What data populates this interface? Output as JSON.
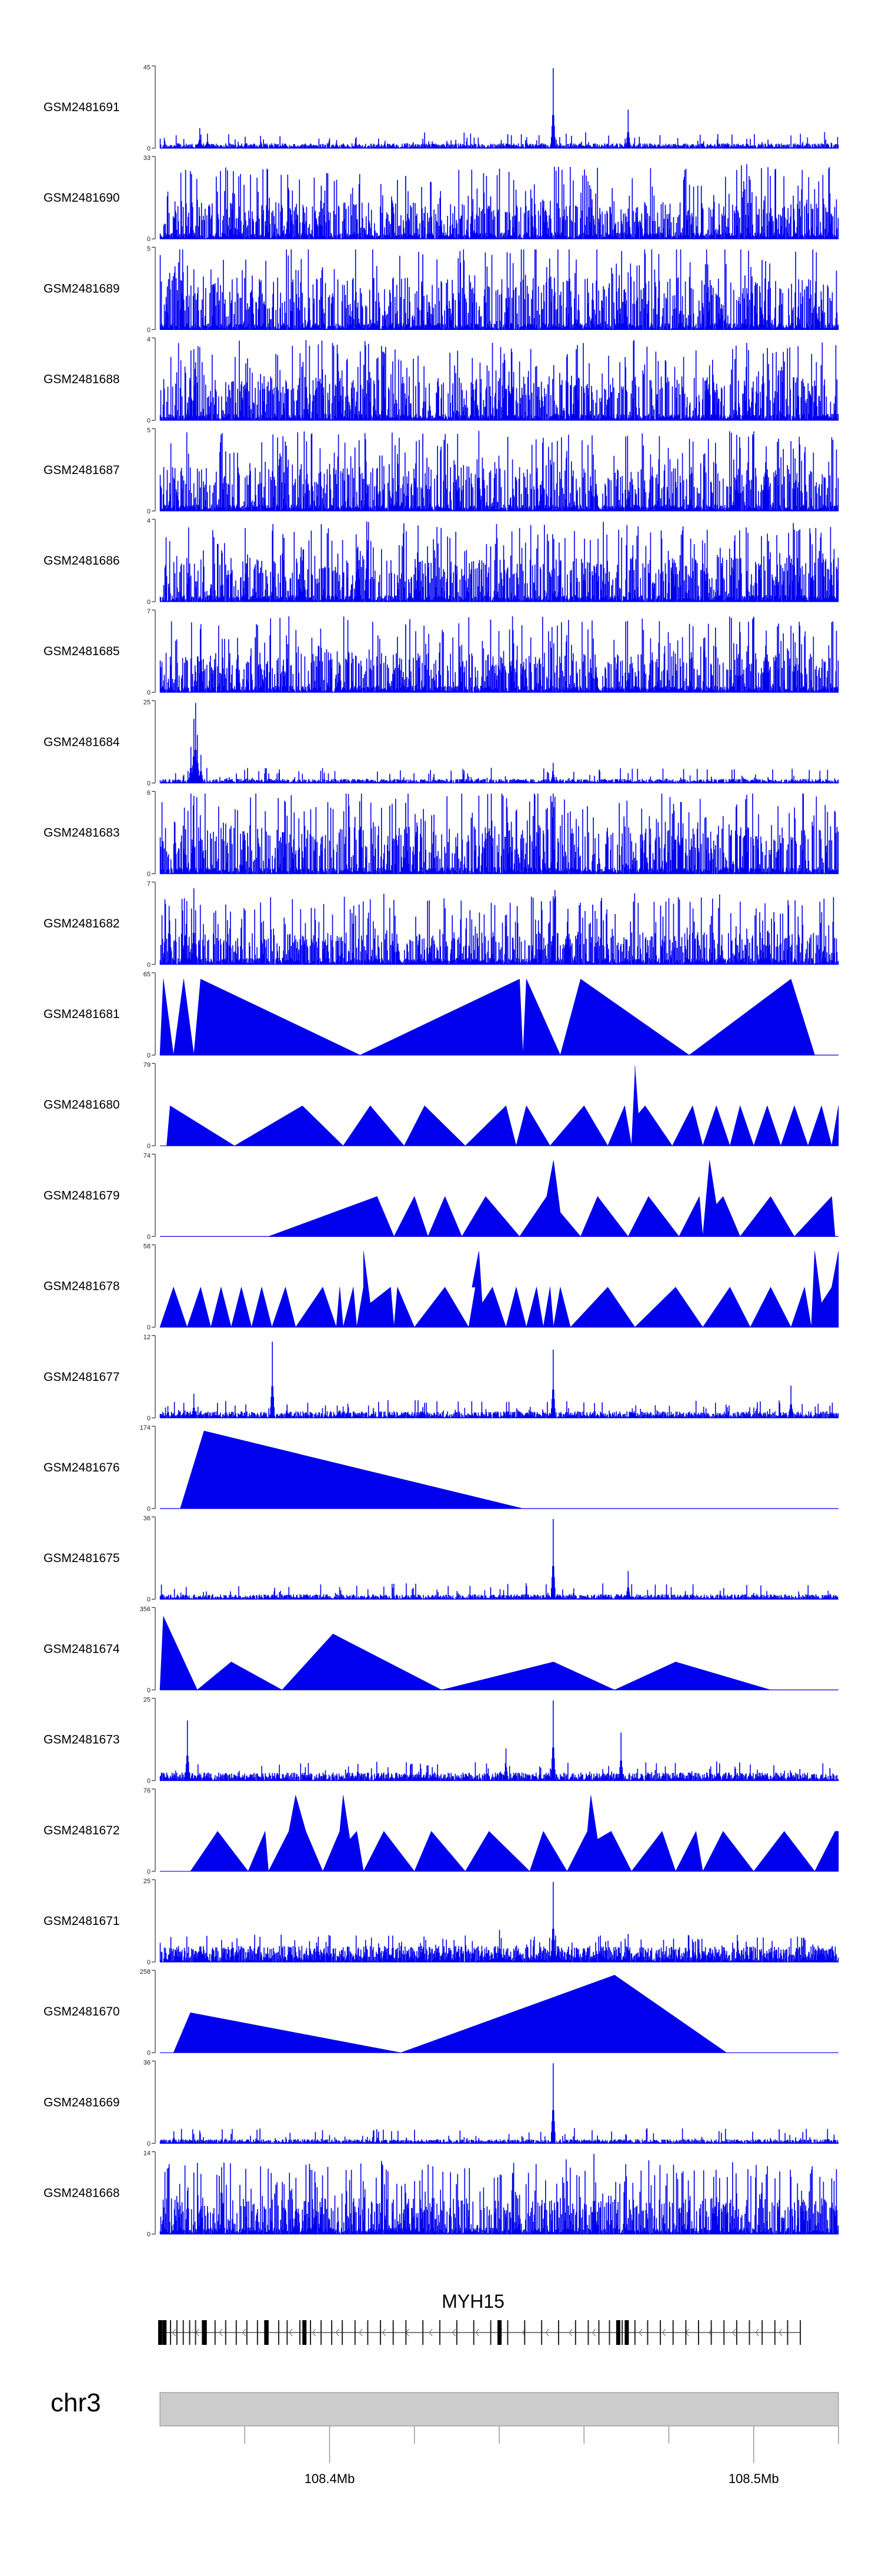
{
  "colors": {
    "signal": "#0000ee",
    "axis": "#000000",
    "ideogram": "#cccccc",
    "ideogram_border": "#888888"
  },
  "chart_data": {
    "type": "area",
    "title": "",
    "chromosome": "chr3",
    "x_range_bp": [
      108360000,
      108520000
    ],
    "x_ticks": [
      {
        "pos": 108380000,
        "label": ""
      },
      {
        "pos": 108400000,
        "label": "108.4Mb"
      },
      {
        "pos": 108420000,
        "label": ""
      },
      {
        "pos": 108440000,
        "label": ""
      },
      {
        "pos": 108460000,
        "label": ""
      },
      {
        "pos": 108480000,
        "label": ""
      },
      {
        "pos": 108500000,
        "label": "108.5Mb"
      },
      {
        "pos": 108520000,
        "label": ""
      }
    ],
    "gene": {
      "name": "MYH15",
      "start": 108360000,
      "end": 108511000,
      "strand": "-",
      "exons": [
        108360000,
        108361200,
        108362500,
        108364000,
        108365500,
        108367000,
        108368400,
        108370000,
        108373000,
        108375500,
        108378000,
        108380500,
        108383000,
        108385500,
        108388000,
        108390000,
        108393000,
        108395500,
        108398000,
        108400500,
        108403000,
        108406000,
        108409000,
        108412000,
        108415000,
        108418000,
        108422000,
        108426000,
        108430000,
        108434000,
        108438000,
        108442000,
        108446000,
        108450000,
        108454000,
        108458000,
        108461000,
        108463500,
        108466000,
        108469000,
        108472000,
        108475000,
        108478000,
        108481000,
        108484000,
        108487000,
        108490000,
        108493000,
        108496000,
        108499000,
        108502000,
        108505000,
        108508000,
        108511000
      ],
      "thick_exons": [
        108360000,
        108361000,
        108370500,
        108385000,
        108394000,
        108440000,
        108468000,
        108470000
      ]
    },
    "tracks": [
      {
        "name": "GSM2481691",
        "ymax": "45",
        "style": "dense",
        "seed": 11,
        "level": 0.06,
        "peaks": [
          [
            0.058,
            0.25
          ],
          [
            0.07,
            0.18
          ],
          [
            0.58,
            1.0
          ],
          [
            0.69,
            0.48
          ],
          [
            0.26,
            0.1
          ]
        ]
      },
      {
        "name": "GSM2481690",
        "ymax": "33",
        "style": "spiky",
        "seed": 12,
        "level": 0.35,
        "peaks": []
      },
      {
        "name": "GSM2481689",
        "ymax": "5",
        "style": "spiky",
        "seed": 13,
        "level": 0.55,
        "peaks": []
      },
      {
        "name": "GSM2481688",
        "ymax": "4",
        "style": "spiky",
        "seed": 14,
        "level": 0.45,
        "peaks": [
          [
            0.215,
            1.0
          ],
          [
            0.33,
            0.85
          ]
        ]
      },
      {
        "name": "GSM2481687",
        "ymax": "5",
        "style": "spiky",
        "seed": 15,
        "level": 0.45,
        "peaks": [
          [
            0.47,
            1.0
          ],
          [
            0.85,
            0.95
          ]
        ]
      },
      {
        "name": "GSM2481686",
        "ymax": "4",
        "style": "spiky",
        "seed": 16,
        "level": 0.45,
        "peaks": [
          [
            0.305,
            1.0
          ],
          [
            0.38,
            0.95
          ]
        ]
      },
      {
        "name": "GSM2481685",
        "ymax": "7",
        "style": "spiky",
        "seed": 17,
        "level": 0.4,
        "peaks": [
          [
            0.06,
            0.85
          ],
          [
            0.52,
            0.95
          ]
        ]
      },
      {
        "name": "GSM2481684",
        "ymax": "25",
        "style": "dense",
        "seed": 18,
        "level": 0.05,
        "peaks": [
          [
            0.045,
            0.45
          ],
          [
            0.05,
            0.8
          ],
          [
            0.052,
            1.0
          ],
          [
            0.055,
            0.6
          ],
          [
            0.06,
            0.35
          ],
          [
            0.58,
            0.25
          ],
          [
            0.16,
            0.12
          ]
        ]
      },
      {
        "name": "GSM2481683",
        "ymax": "6",
        "style": "spiky",
        "seed": 19,
        "level": 0.5,
        "peaks": [
          [
            0.58,
            1.0
          ]
        ]
      },
      {
        "name": "GSM2481682",
        "ymax": "7",
        "style": "spiky",
        "seed": 20,
        "level": 0.3,
        "peaks": [
          [
            0.05,
            0.95
          ],
          [
            0.58,
            0.85
          ],
          [
            0.58,
            0.65
          ]
        ]
      },
      {
        "name": "GSM2481681",
        "ymax": "65",
        "style": "tri",
        "seed": 21,
        "level": 0,
        "peaks": [
          [
            0.0,
            0.0
          ],
          [
            0.005,
            0.95
          ],
          [
            0.02,
            0.0
          ],
          [
            0.035,
            0.95
          ],
          [
            0.05,
            0.0
          ],
          [
            0.06,
            0.95
          ],
          [
            0.295,
            0.0
          ],
          [
            0.53,
            0.95
          ],
          [
            0.535,
            0.0
          ],
          [
            0.54,
            0.95
          ],
          [
            0.59,
            0.0
          ],
          [
            0.62,
            0.95
          ],
          [
            0.78,
            0.0
          ],
          [
            0.93,
            0.95
          ],
          [
            0.965,
            0.0
          ]
        ]
      },
      {
        "name": "GSM2481680",
        "ymax": "79",
        "style": "tri",
        "seed": 22,
        "level": 0,
        "peaks": [
          [
            0.01,
            0.0
          ],
          [
            0.015,
            0.5
          ],
          [
            0.11,
            0.0
          ],
          [
            0.21,
            0.5
          ],
          [
            0.27,
            0.0
          ],
          [
            0.31,
            0.5
          ],
          [
            0.36,
            0.0
          ],
          [
            0.39,
            0.5
          ],
          [
            0.45,
            0.0
          ],
          [
            0.51,
            0.5
          ],
          [
            0.525,
            0.0
          ],
          [
            0.54,
            0.5
          ],
          [
            0.575,
            0.0
          ],
          [
            0.625,
            0.5
          ],
          [
            0.66,
            0.0
          ],
          [
            0.685,
            0.5
          ],
          [
            0.695,
            0.0
          ],
          [
            0.7,
            0.9
          ],
          [
            0.7,
            1.0
          ],
          [
            0.705,
            0.4
          ],
          [
            0.715,
            0.5
          ],
          [
            0.755,
            0.0
          ],
          [
            0.785,
            0.5
          ],
          [
            0.8,
            0.0
          ],
          [
            0.82,
            0.5
          ],
          [
            0.84,
            0.0
          ],
          [
            0.855,
            0.5
          ],
          [
            0.875,
            0.0
          ],
          [
            0.895,
            0.5
          ],
          [
            0.915,
            0.0
          ],
          [
            0.935,
            0.5
          ],
          [
            0.955,
            0.0
          ],
          [
            0.975,
            0.5
          ],
          [
            0.99,
            0.0
          ],
          [
            1.0,
            0.5
          ]
        ]
      },
      {
        "name": "GSM2481679",
        "ymax": "74",
        "style": "tri",
        "seed": 23,
        "level": 0,
        "peaks": [
          [
            0.16,
            0.0
          ],
          [
            0.32,
            0.5
          ],
          [
            0.345,
            0.0
          ],
          [
            0.375,
            0.5
          ],
          [
            0.395,
            0.0
          ],
          [
            0.42,
            0.5
          ],
          [
            0.445,
            0.0
          ],
          [
            0.48,
            0.5
          ],
          [
            0.53,
            0.0
          ],
          [
            0.57,
            0.5
          ],
          [
            0.58,
            0.95
          ],
          [
            0.59,
            0.3
          ],
          [
            0.62,
            0.0
          ],
          [
            0.645,
            0.5
          ],
          [
            0.69,
            0.0
          ],
          [
            0.72,
            0.5
          ],
          [
            0.765,
            0.0
          ],
          [
            0.795,
            0.5
          ],
          [
            0.8,
            0.0
          ],
          [
            0.81,
            0.95
          ],
          [
            0.82,
            0.4
          ],
          [
            0.83,
            0.5
          ],
          [
            0.855,
            0.0
          ],
          [
            0.9,
            0.5
          ],
          [
            0.935,
            0.0
          ],
          [
            0.99,
            0.5
          ],
          [
            0.995,
            0.0
          ]
        ]
      },
      {
        "name": "GSM2481678",
        "ymax": "58",
        "style": "tri",
        "seed": 24,
        "level": 0,
        "peaks": [
          [
            0.0,
            0.0
          ],
          [
            0.02,
            0.5
          ],
          [
            0.04,
            0.0
          ],
          [
            0.06,
            0.5
          ],
          [
            0.075,
            0.0
          ],
          [
            0.09,
            0.5
          ],
          [
            0.105,
            0.0
          ],
          [
            0.12,
            0.5
          ],
          [
            0.135,
            0.0
          ],
          [
            0.15,
            0.5
          ],
          [
            0.165,
            0.0
          ],
          [
            0.185,
            0.5
          ],
          [
            0.2,
            0.0
          ],
          [
            0.24,
            0.5
          ],
          [
            0.26,
            0.0
          ],
          [
            0.265,
            0.5
          ],
          [
            0.27,
            0.0
          ],
          [
            0.285,
            0.5
          ],
          [
            0.29,
            0.0
          ],
          [
            0.3,
            0.5
          ],
          [
            0.3,
            0.95
          ],
          [
            0.31,
            0.3
          ],
          [
            0.34,
            0.5
          ],
          [
            0.345,
            0.0
          ],
          [
            0.35,
            0.5
          ],
          [
            0.375,
            0.0
          ],
          [
            0.42,
            0.5
          ],
          [
            0.455,
            0.0
          ],
          [
            0.465,
            0.5
          ],
          [
            0.46,
            0.5
          ],
          [
            0.47,
            0.95
          ],
          [
            0.475,
            0.3
          ],
          [
            0.49,
            0.5
          ],
          [
            0.51,
            0.0
          ],
          [
            0.525,
            0.5
          ],
          [
            0.54,
            0.0
          ],
          [
            0.555,
            0.5
          ],
          [
            0.565,
            0.0
          ],
          [
            0.575,
            0.5
          ],
          [
            0.58,
            0.0
          ],
          [
            0.59,
            0.5
          ],
          [
            0.605,
            0.0
          ],
          [
            0.66,
            0.5
          ],
          [
            0.7,
            0.0
          ],
          [
            0.76,
            0.5
          ],
          [
            0.8,
            0.0
          ],
          [
            0.84,
            0.5
          ],
          [
            0.87,
            0.0
          ],
          [
            0.9,
            0.5
          ],
          [
            0.93,
            0.0
          ],
          [
            0.95,
            0.5
          ],
          [
            0.96,
            0.0
          ],
          [
            0.965,
            0.95
          ],
          [
            0.975,
            0.3
          ],
          [
            0.99,
            0.5
          ],
          [
            1.0,
            0.95
          ]
        ]
      },
      {
        "name": "GSM2481677",
        "ymax": "12",
        "style": "dense",
        "seed": 25,
        "level": 0.08,
        "peaks": [
          [
            0.165,
            0.95
          ],
          [
            0.58,
            0.85
          ],
          [
            0.93,
            0.4
          ],
          [
            0.05,
            0.3
          ]
        ]
      },
      {
        "name": "GSM2481676",
        "ymax": "174",
        "style": "tri",
        "seed": 26,
        "level": 0,
        "peaks": [
          [
            0.03,
            0.0
          ],
          [
            0.065,
            0.97
          ],
          [
            0.535,
            0.0
          ]
        ]
      },
      {
        "name": "GSM2481675",
        "ymax": "36",
        "style": "dense",
        "seed": 27,
        "level": 0.06,
        "peaks": [
          [
            0.58,
            1.0
          ],
          [
            0.69,
            0.35
          ]
        ]
      },
      {
        "name": "GSM2481674",
        "ymax": "356",
        "style": "tri",
        "seed": 28,
        "level": 0,
        "peaks": [
          [
            0.0,
            0.0
          ],
          [
            0.005,
            0.92
          ],
          [
            0.055,
            0.0
          ],
          [
            0.105,
            0.35
          ],
          [
            0.18,
            0.0
          ],
          [
            0.255,
            0.7
          ],
          [
            0.415,
            0.0
          ],
          [
            0.58,
            0.35
          ],
          [
            0.67,
            0.0
          ],
          [
            0.76,
            0.35
          ],
          [
            0.9,
            0.0
          ]
        ]
      },
      {
        "name": "GSM2481673",
        "ymax": "25",
        "style": "dense",
        "seed": 29,
        "level": 0.1,
        "peaks": [
          [
            0.04,
            0.75
          ],
          [
            0.58,
            1.0
          ],
          [
            0.68,
            0.6
          ],
          [
            0.51,
            0.4
          ]
        ]
      },
      {
        "name": "GSM2481672",
        "ymax": "76",
        "style": "tri",
        "seed": 30,
        "level": 0,
        "peaks": [
          [
            0.045,
            0.0
          ],
          [
            0.085,
            0.5
          ],
          [
            0.13,
            0.0
          ],
          [
            0.155,
            0.5
          ],
          [
            0.16,
            0.0
          ],
          [
            0.19,
            0.5
          ],
          [
            0.2,
            0.95
          ],
          [
            0.215,
            0.5
          ],
          [
            0.24,
            0.0
          ],
          [
            0.265,
            0.5
          ],
          [
            0.27,
            0.95
          ],
          [
            0.28,
            0.4
          ],
          [
            0.29,
            0.5
          ],
          [
            0.3,
            0.0
          ],
          [
            0.33,
            0.5
          ],
          [
            0.375,
            0.0
          ],
          [
            0.4,
            0.5
          ],
          [
            0.45,
            0.0
          ],
          [
            0.485,
            0.5
          ],
          [
            0.545,
            0.0
          ],
          [
            0.565,
            0.5
          ],
          [
            0.6,
            0.0
          ],
          [
            0.63,
            0.5
          ],
          [
            0.635,
            0.95
          ],
          [
            0.645,
            0.4
          ],
          [
            0.665,
            0.5
          ],
          [
            0.695,
            0.0
          ],
          [
            0.74,
            0.5
          ],
          [
            0.76,
            0.0
          ],
          [
            0.79,
            0.5
          ],
          [
            0.8,
            0.0
          ],
          [
            0.83,
            0.5
          ],
          [
            0.875,
            0.0
          ],
          [
            0.92,
            0.5
          ],
          [
            0.965,
            0.0
          ],
          [
            0.995,
            0.5
          ],
          [
            1.0,
            0.5
          ]
        ]
      },
      {
        "name": "GSM2481671",
        "ymax": "25",
        "style": "dense",
        "seed": 31,
        "level": 0.2,
        "peaks": [
          [
            0.58,
            1.0
          ],
          [
            0.5,
            0.4
          ],
          [
            0.69,
            0.35
          ]
        ]
      },
      {
        "name": "GSM2481670",
        "ymax": "258",
        "style": "tri",
        "seed": 32,
        "level": 0,
        "peaks": [
          [
            0.02,
            0.0
          ],
          [
            0.045,
            0.5
          ],
          [
            0.355,
            0.0
          ],
          [
            0.67,
            0.97
          ],
          [
            0.835,
            0.0
          ]
        ]
      },
      {
        "name": "GSM2481669",
        "ymax": "36",
        "style": "dense",
        "seed": 33,
        "level": 0.05,
        "peaks": [
          [
            0.58,
            1.0
          ],
          [
            0.02,
            0.15
          ]
        ]
      },
      {
        "name": "GSM2481668",
        "ymax": "14",
        "style": "spiky",
        "seed": 34,
        "level": 0.35,
        "peaks": [
          [
            0.64,
            1.0
          ],
          [
            0.82,
            0.8
          ],
          [
            0.06,
            0.75
          ],
          [
            0.2,
            0.7
          ]
        ]
      }
    ]
  }
}
